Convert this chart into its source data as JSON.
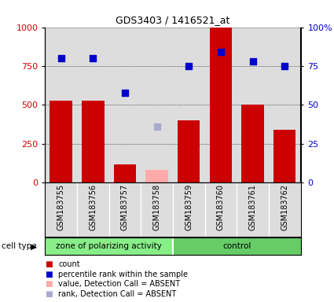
{
  "title": "GDS3403 / 1416521_at",
  "samples": [
    "GSM183755",
    "GSM183756",
    "GSM183757",
    "GSM183758",
    "GSM183759",
    "GSM183760",
    "GSM183761",
    "GSM183762"
  ],
  "bar_values": [
    530,
    530,
    120,
    null,
    400,
    1000,
    500,
    340
  ],
  "bar_absent_values": [
    null,
    null,
    null,
    80,
    null,
    null,
    null,
    null
  ],
  "dot_values": [
    800,
    800,
    580,
    null,
    750,
    840,
    780,
    750
  ],
  "dot_absent_values": [
    null,
    null,
    null,
    360,
    null,
    null,
    null,
    null
  ],
  "ylim": [
    0,
    1000
  ],
  "y2lim": [
    0,
    100
  ],
  "yticks": [
    0,
    250,
    500,
    750,
    1000
  ],
  "ytick_labels": [
    "0",
    "250",
    "500",
    "750",
    "1000"
  ],
  "y2ticks": [
    0,
    25,
    50,
    75,
    100
  ],
  "y2tick_labels": [
    "0",
    "25",
    "50",
    "75",
    "100%"
  ],
  "bar_color": "#cc0000",
  "bar_absent_color": "#ffaaaa",
  "dot_color": "#0000cc",
  "dot_absent_color": "#aaaacc",
  "col_bg_color": "#dddddd",
  "cell_type_groups": [
    {
      "label": "zone of polarizing activity",
      "start": 0,
      "end": 4,
      "color": "#88ee88"
    },
    {
      "label": "control",
      "start": 4,
      "end": 8,
      "color": "#66cc66"
    }
  ],
  "cell_type_label": "cell type",
  "legend_items": [
    {
      "color": "#cc0000",
      "label": "count"
    },
    {
      "color": "#0000cc",
      "label": "percentile rank within the sample"
    },
    {
      "color": "#ffaaaa",
      "label": "value, Detection Call = ABSENT"
    },
    {
      "color": "#aaaacc",
      "label": "rank, Detection Call = ABSENT"
    }
  ],
  "tick_label_color_left": "#cc0000",
  "tick_label_color_right": "#0000cc"
}
